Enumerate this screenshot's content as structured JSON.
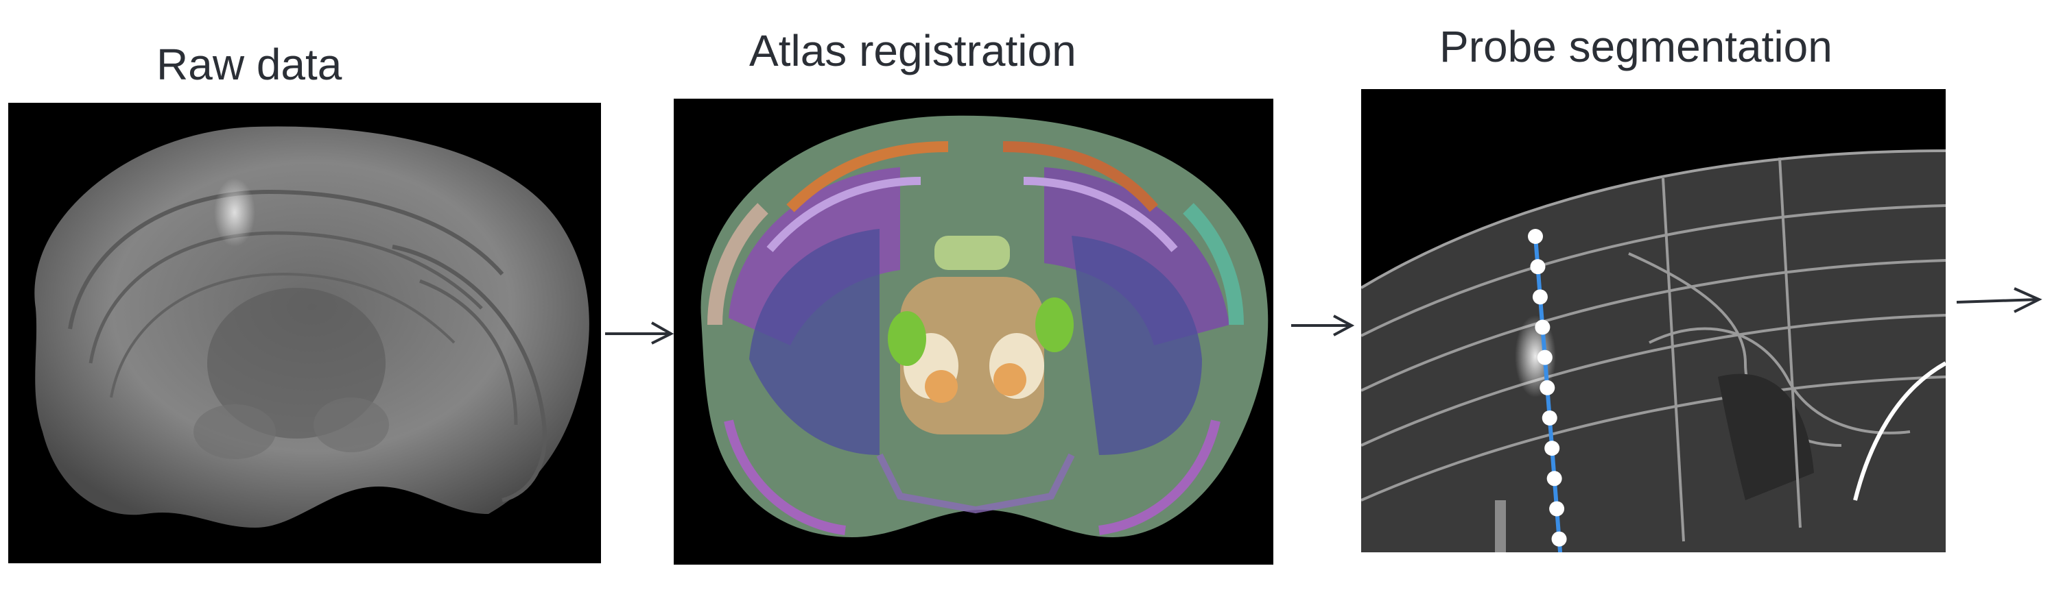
{
  "steps": [
    {
      "id": "raw",
      "title": "Raw data",
      "image": "grayscale coronal brain volume"
    },
    {
      "id": "atlas",
      "title": "Atlas registration",
      "image": "colored atlas region overlay"
    },
    {
      "id": "probe",
      "title": "Probe segmentation",
      "image": "zoomed slice with probe track"
    }
  ],
  "colors": {
    "title_text": "#2b2f36",
    "arrow": "#2b2f36",
    "probe_line": "#3a8ee6",
    "probe_points": "#ffffff",
    "boundaries": "#9a9a9a"
  },
  "arrow_icon": "right-arrow-icon"
}
